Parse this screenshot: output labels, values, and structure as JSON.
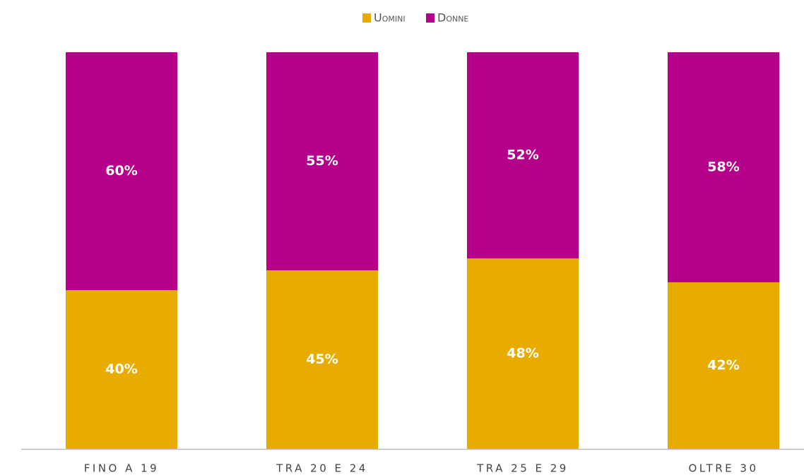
{
  "chart_data": {
    "type": "stacked_bar",
    "categories": [
      "FINO A 19",
      "TRA 20 E 24",
      "TRA 25 E 29",
      "OLTRE 30"
    ],
    "series": [
      {
        "name": "Uomini",
        "color": "#e8ac00",
        "values": [
          40,
          45,
          48,
          42
        ],
        "value_labels": [
          "40%",
          "45%",
          "48%",
          "42%"
        ]
      },
      {
        "name": "Donne",
        "color": "#b5008a",
        "values": [
          60,
          55,
          52,
          58
        ],
        "value_labels": [
          "60%",
          "55%",
          "52%",
          "58%"
        ]
      }
    ],
    "legend": "top"
  }
}
